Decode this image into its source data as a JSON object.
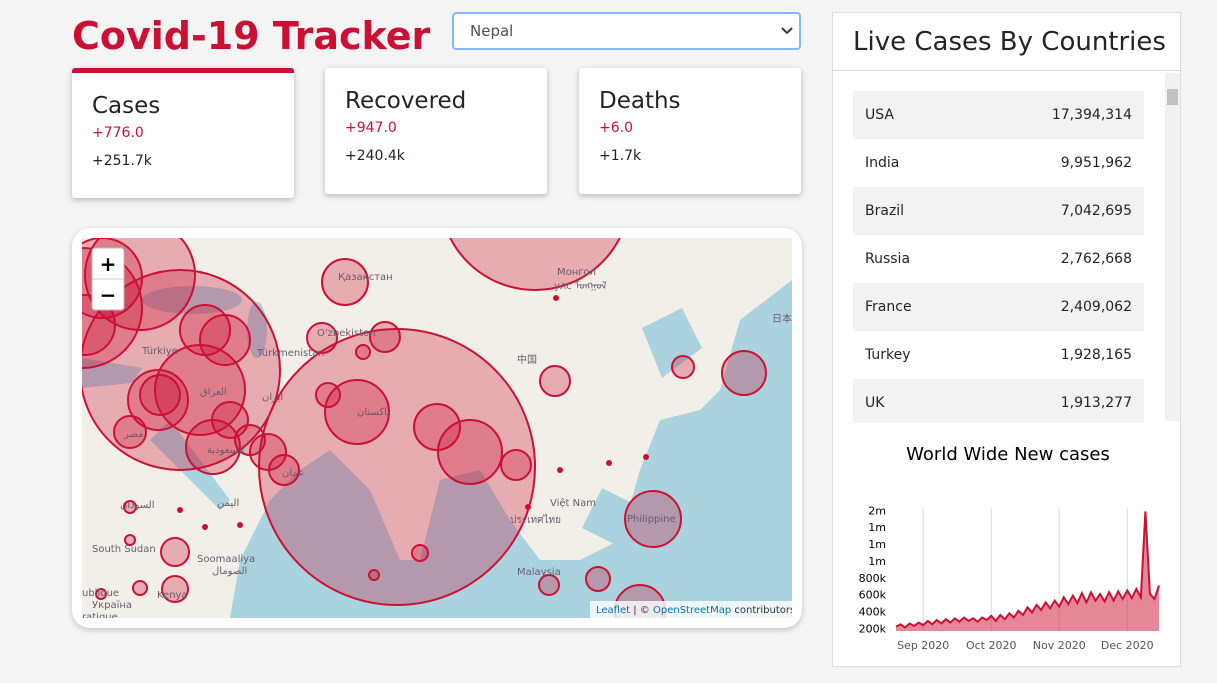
{
  "header": {
    "title": "Covid-19 Tracker",
    "selected_country": "Nepal"
  },
  "cards": [
    {
      "title": "Cases",
      "today": "+776.0",
      "total": "+251.7k"
    },
    {
      "title": "Recovered",
      "today": "+947.0",
      "total": "+240.4k"
    },
    {
      "title": "Deaths",
      "today": "+6.0",
      "total": "+1.7k"
    }
  ],
  "map": {
    "zoom_in": "+",
    "zoom_out": "−",
    "labels": [
      "Қазақстан",
      "Монгол",
      "улс ᠮᠤᠩᠭᠤᠯ",
      "Türkiye",
      "O'zbekiston",
      "Türkmenistan",
      "中国",
      "日本",
      "پاکستان",
      "ایران",
      "العراق",
      "مصر",
      "السعودية",
      "عمان",
      "اليمن",
      "السودان",
      "South Sudan",
      "Soomaaliya",
      "الصومال",
      "Kenya",
      "Việt Nam",
      "ประเทศไทย",
      "Philippine",
      "Malaysia",
      "Україна",
      "ublique",
      "ratique"
    ],
    "attribution": {
      "link1": "Leaflet",
      "sep": "| ©",
      "link2": "OpenStreetMap",
      "rest": "contributors"
    }
  },
  "live_cases": {
    "title": "Live Cases By Countries",
    "rows": [
      [
        "USA",
        "17,394,314"
      ],
      [
        "India",
        "9,951,962"
      ],
      [
        "Brazil",
        "7,042,695"
      ],
      [
        "Russia",
        "2,762,668"
      ],
      [
        "France",
        "2,409,062"
      ],
      [
        "Turkey",
        "1,928,165"
      ],
      [
        "UK",
        "1,913,277"
      ]
    ]
  },
  "chart_data": {
    "type": "area",
    "title": "World Wide New cases",
    "color": "#cc1034",
    "categories": [
      null,
      null,
      null,
      null,
      null,
      null,
      "Sep 2020",
      null,
      null,
      null,
      null,
      null,
      null,
      null,
      null,
      null,
      null,
      null,
      null,
      null,
      null,
      "Oct 2020",
      null,
      null,
      null,
      null,
      null,
      null,
      null,
      null,
      null,
      null,
      null,
      null,
      null,
      null,
      "Nov 2020",
      null,
      null,
      null,
      null,
      null,
      null,
      null,
      null,
      null,
      null,
      null,
      null,
      null,
      null,
      "Dec 2020",
      null,
      null,
      null,
      null,
      null,
      null,
      null
    ],
    "values": [
      230000,
      260000,
      220000,
      270000,
      240000,
      280000,
      250000,
      300000,
      260000,
      310000,
      270000,
      320000,
      280000,
      330000,
      290000,
      340000,
      300000,
      330000,
      290000,
      340000,
      310000,
      360000,
      300000,
      370000,
      320000,
      390000,
      340000,
      420000,
      370000,
      460000,
      400000,
      490000,
      430000,
      520000,
      450000,
      540000,
      470000,
      580000,
      500000,
      600000,
      510000,
      630000,
      520000,
      640000,
      540000,
      620000,
      530000,
      640000,
      540000,
      650000,
      560000,
      660000,
      570000,
      680000,
      580000,
      1600000,
      620000,
      560000,
      720000
    ],
    "ylim": [
      180000,
      1640000
    ],
    "yticks": [
      {
        "value": 200000,
        "label": "200k"
      },
      {
        "value": 400000,
        "label": "400k"
      },
      {
        "value": 600000,
        "label": "600k"
      },
      {
        "value": 800000,
        "label": "800k"
      },
      {
        "value": 1000000,
        "label": "1m"
      },
      {
        "value": 1200000,
        "label": "1m"
      },
      {
        "value": 1400000,
        "label": "1m"
      },
      {
        "value": 1600000,
        "label": "2m"
      }
    ],
    "grid": true
  }
}
